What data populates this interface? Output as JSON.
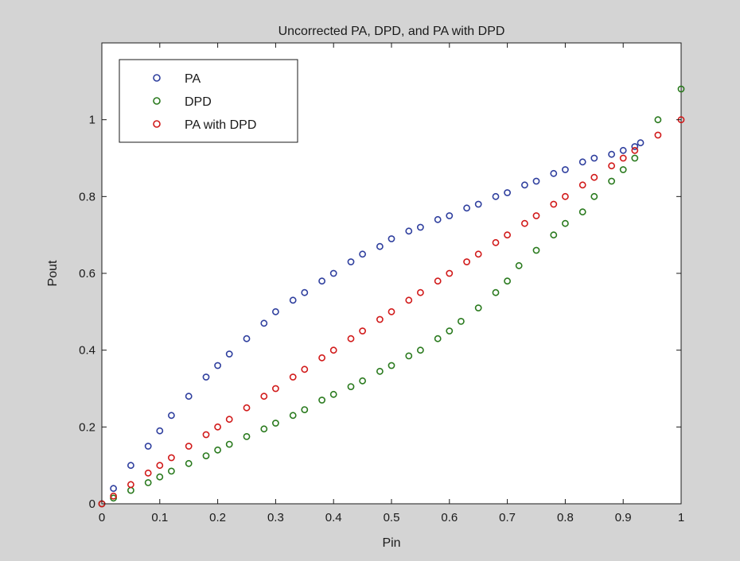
{
  "chart_data": {
    "type": "scatter",
    "title": "Uncorrected PA, DPD, and PA with DPD",
    "xlabel": "Pin",
    "ylabel": "Pout",
    "xlim": [
      0,
      1
    ],
    "ylim": [
      0,
      1.2
    ],
    "xticks": [
      "0",
      "0.1",
      "0.2",
      "0.3",
      "0.4",
      "0.5",
      "0.6",
      "0.7",
      "0.8",
      "0.9",
      "1"
    ],
    "yticks": [
      "0",
      "0.2",
      "0.4",
      "0.6",
      "0.8",
      "1"
    ],
    "legend_position": "top-left",
    "grid": false,
    "marker": "circle-open",
    "series": [
      {
        "name": "PA",
        "color": "#2f3f9e",
        "x": [
          0,
          0.02,
          0.05,
          0.08,
          0.1,
          0.12,
          0.15,
          0.18,
          0.2,
          0.22,
          0.25,
          0.28,
          0.3,
          0.33,
          0.35,
          0.38,
          0.4,
          0.43,
          0.45,
          0.48,
          0.5,
          0.53,
          0.55,
          0.58,
          0.6,
          0.63,
          0.65,
          0.68,
          0.7,
          0.73,
          0.75,
          0.78,
          0.8,
          0.83,
          0.85,
          0.88,
          0.9,
          0.92,
          0.93
        ],
        "y": [
          0,
          0.04,
          0.1,
          0.15,
          0.19,
          0.23,
          0.28,
          0.33,
          0.36,
          0.39,
          0.43,
          0.47,
          0.5,
          0.53,
          0.55,
          0.58,
          0.6,
          0.63,
          0.65,
          0.67,
          0.69,
          0.71,
          0.72,
          0.74,
          0.75,
          0.77,
          0.78,
          0.8,
          0.81,
          0.83,
          0.84,
          0.86,
          0.87,
          0.89,
          0.9,
          0.91,
          0.92,
          0.93,
          0.94
        ]
      },
      {
        "name": "DPD",
        "color": "#2a7a1e",
        "x": [
          0,
          0.02,
          0.05,
          0.08,
          0.1,
          0.12,
          0.15,
          0.18,
          0.2,
          0.22,
          0.25,
          0.28,
          0.3,
          0.33,
          0.35,
          0.38,
          0.4,
          0.43,
          0.45,
          0.48,
          0.5,
          0.53,
          0.55,
          0.58,
          0.6,
          0.62,
          0.65,
          0.68,
          0.7,
          0.72,
          0.75,
          0.78,
          0.8,
          0.83,
          0.85,
          0.88,
          0.9,
          0.92,
          0.96,
          1.0
        ],
        "y": [
          0,
          0.015,
          0.035,
          0.055,
          0.07,
          0.085,
          0.105,
          0.125,
          0.14,
          0.155,
          0.175,
          0.195,
          0.21,
          0.23,
          0.245,
          0.27,
          0.285,
          0.305,
          0.32,
          0.345,
          0.36,
          0.385,
          0.4,
          0.43,
          0.45,
          0.475,
          0.51,
          0.55,
          0.58,
          0.62,
          0.66,
          0.7,
          0.73,
          0.76,
          0.8,
          0.84,
          0.87,
          0.9,
          1.0,
          1.08
        ]
      },
      {
        "name": "PA with DPD",
        "color": "#d11a1a",
        "x": [
          0,
          0.02,
          0.05,
          0.08,
          0.1,
          0.12,
          0.15,
          0.18,
          0.2,
          0.22,
          0.25,
          0.28,
          0.3,
          0.33,
          0.35,
          0.38,
          0.4,
          0.43,
          0.45,
          0.48,
          0.5,
          0.53,
          0.55,
          0.58,
          0.6,
          0.63,
          0.65,
          0.68,
          0.7,
          0.73,
          0.75,
          0.78,
          0.8,
          0.83,
          0.85,
          0.88,
          0.9,
          0.92,
          0.96,
          1.0
        ],
        "y": [
          0,
          0.02,
          0.05,
          0.08,
          0.1,
          0.12,
          0.15,
          0.18,
          0.2,
          0.22,
          0.25,
          0.28,
          0.3,
          0.33,
          0.35,
          0.38,
          0.4,
          0.43,
          0.45,
          0.48,
          0.5,
          0.53,
          0.55,
          0.58,
          0.6,
          0.63,
          0.65,
          0.68,
          0.7,
          0.73,
          0.75,
          0.78,
          0.8,
          0.83,
          0.85,
          0.88,
          0.9,
          0.92,
          0.96,
          1.0
        ]
      }
    ]
  }
}
